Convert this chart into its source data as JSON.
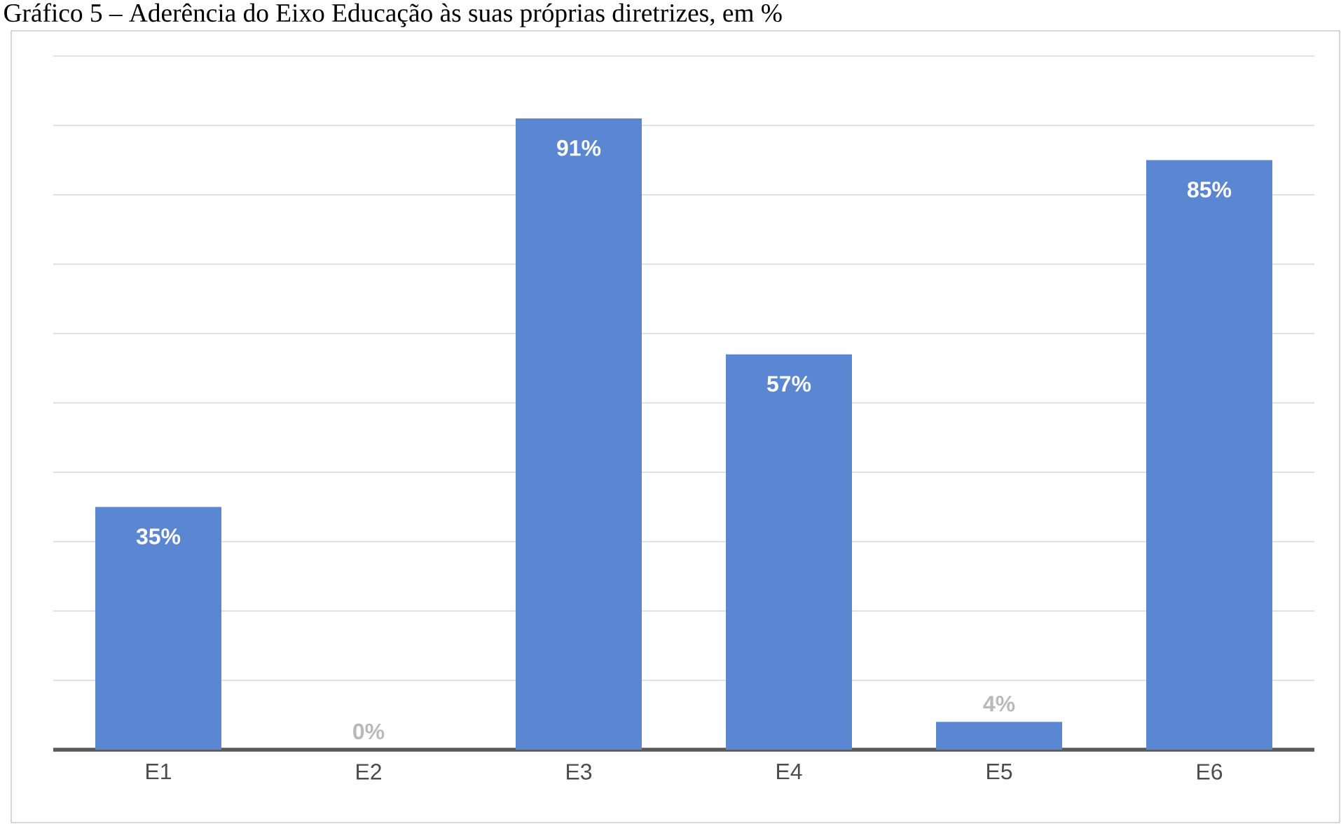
{
  "chart_data": {
    "type": "bar",
    "title": "Gráfico 5 – Aderência do Eixo Educação às suas próprias diretrizes, em %",
    "categories": [
      "E1",
      "E2",
      "E3",
      "E4",
      "E5",
      "E6"
    ],
    "values": [
      35,
      0,
      91,
      57,
      4,
      85
    ],
    "value_labels": [
      "35%",
      "0%",
      "91%",
      "57%",
      "4%",
      "85%"
    ],
    "color": "#5b86d1",
    "ylim": [
      0,
      100
    ],
    "yticks": [
      {
        "value": 0,
        "label": null
      },
      {
        "value": 10,
        "label": null
      },
      {
        "value": 20,
        "label": null
      },
      {
        "value": 30,
        "label": null
      },
      {
        "value": 40,
        "label": null
      },
      {
        "value": 50,
        "label": null
      },
      {
        "value": 60,
        "label": null
      },
      {
        "value": 70,
        "label": null
      },
      {
        "value": 80,
        "label": null
      },
      {
        "value": 90,
        "label": null
      },
      {
        "value": 100,
        "label": null
      }
    ],
    "grid": "y",
    "tick_labels": "x"
  }
}
